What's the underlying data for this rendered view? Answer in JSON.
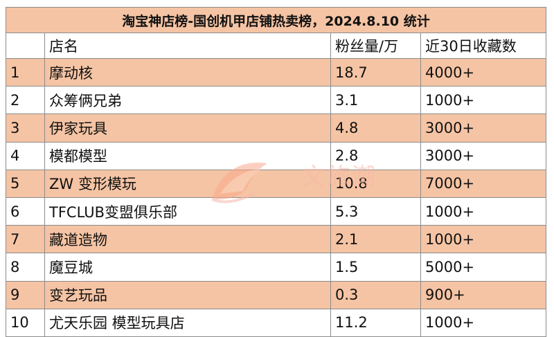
{
  "title": "淘宝神店榜-国创机甲店铺热卖榜，2024.8.10 统计",
  "columns": [
    "",
    "店名",
    "粉丝量/万",
    "近30日收藏数"
  ],
  "rows": [
    {
      "rank": "1",
      "name": "摩动核",
      "fans": "18.7",
      "favorites": "4000+"
    },
    {
      "rank": "2",
      "name": "众筹俩兄弟",
      "fans": "3.1",
      "favorites": "1000+"
    },
    {
      "rank": "3",
      "name": "伊家玩具",
      "fans": "4.8",
      "favorites": "3000+"
    },
    {
      "rank": "4",
      "name": "模都模型",
      "fans": "2.8",
      "favorites": "3000+"
    },
    {
      "rank": "5",
      "name": "ZW 变形模玩",
      "fans": "10.8",
      "favorites": "7000+"
    },
    {
      "rank": "6",
      "name": "TFCLUB变盟俱乐部",
      "fans": "5.3",
      "favorites": "1000+"
    },
    {
      "rank": "7",
      "name": "藏道造物",
      "fans": "2.1",
      "favorites": "1000+"
    },
    {
      "rank": "8",
      "name": "魔豆城",
      "fans": "1.5",
      "favorites": "5000+"
    },
    {
      "rank": "9",
      "name": "变艺玩品",
      "fans": "0.3",
      "favorites": "900+"
    },
    {
      "rank": "10",
      "name": "尤天乐园 模型玩具店",
      "fans": "11.2",
      "favorites": "1000+"
    }
  ],
  "watermark": {
    "text": "文旅潮",
    "icon": "fish-logo-icon",
    "color": "#f7b8a8"
  },
  "colors": {
    "band": "#f5c4a4",
    "border": "#8a8a8a"
  }
}
